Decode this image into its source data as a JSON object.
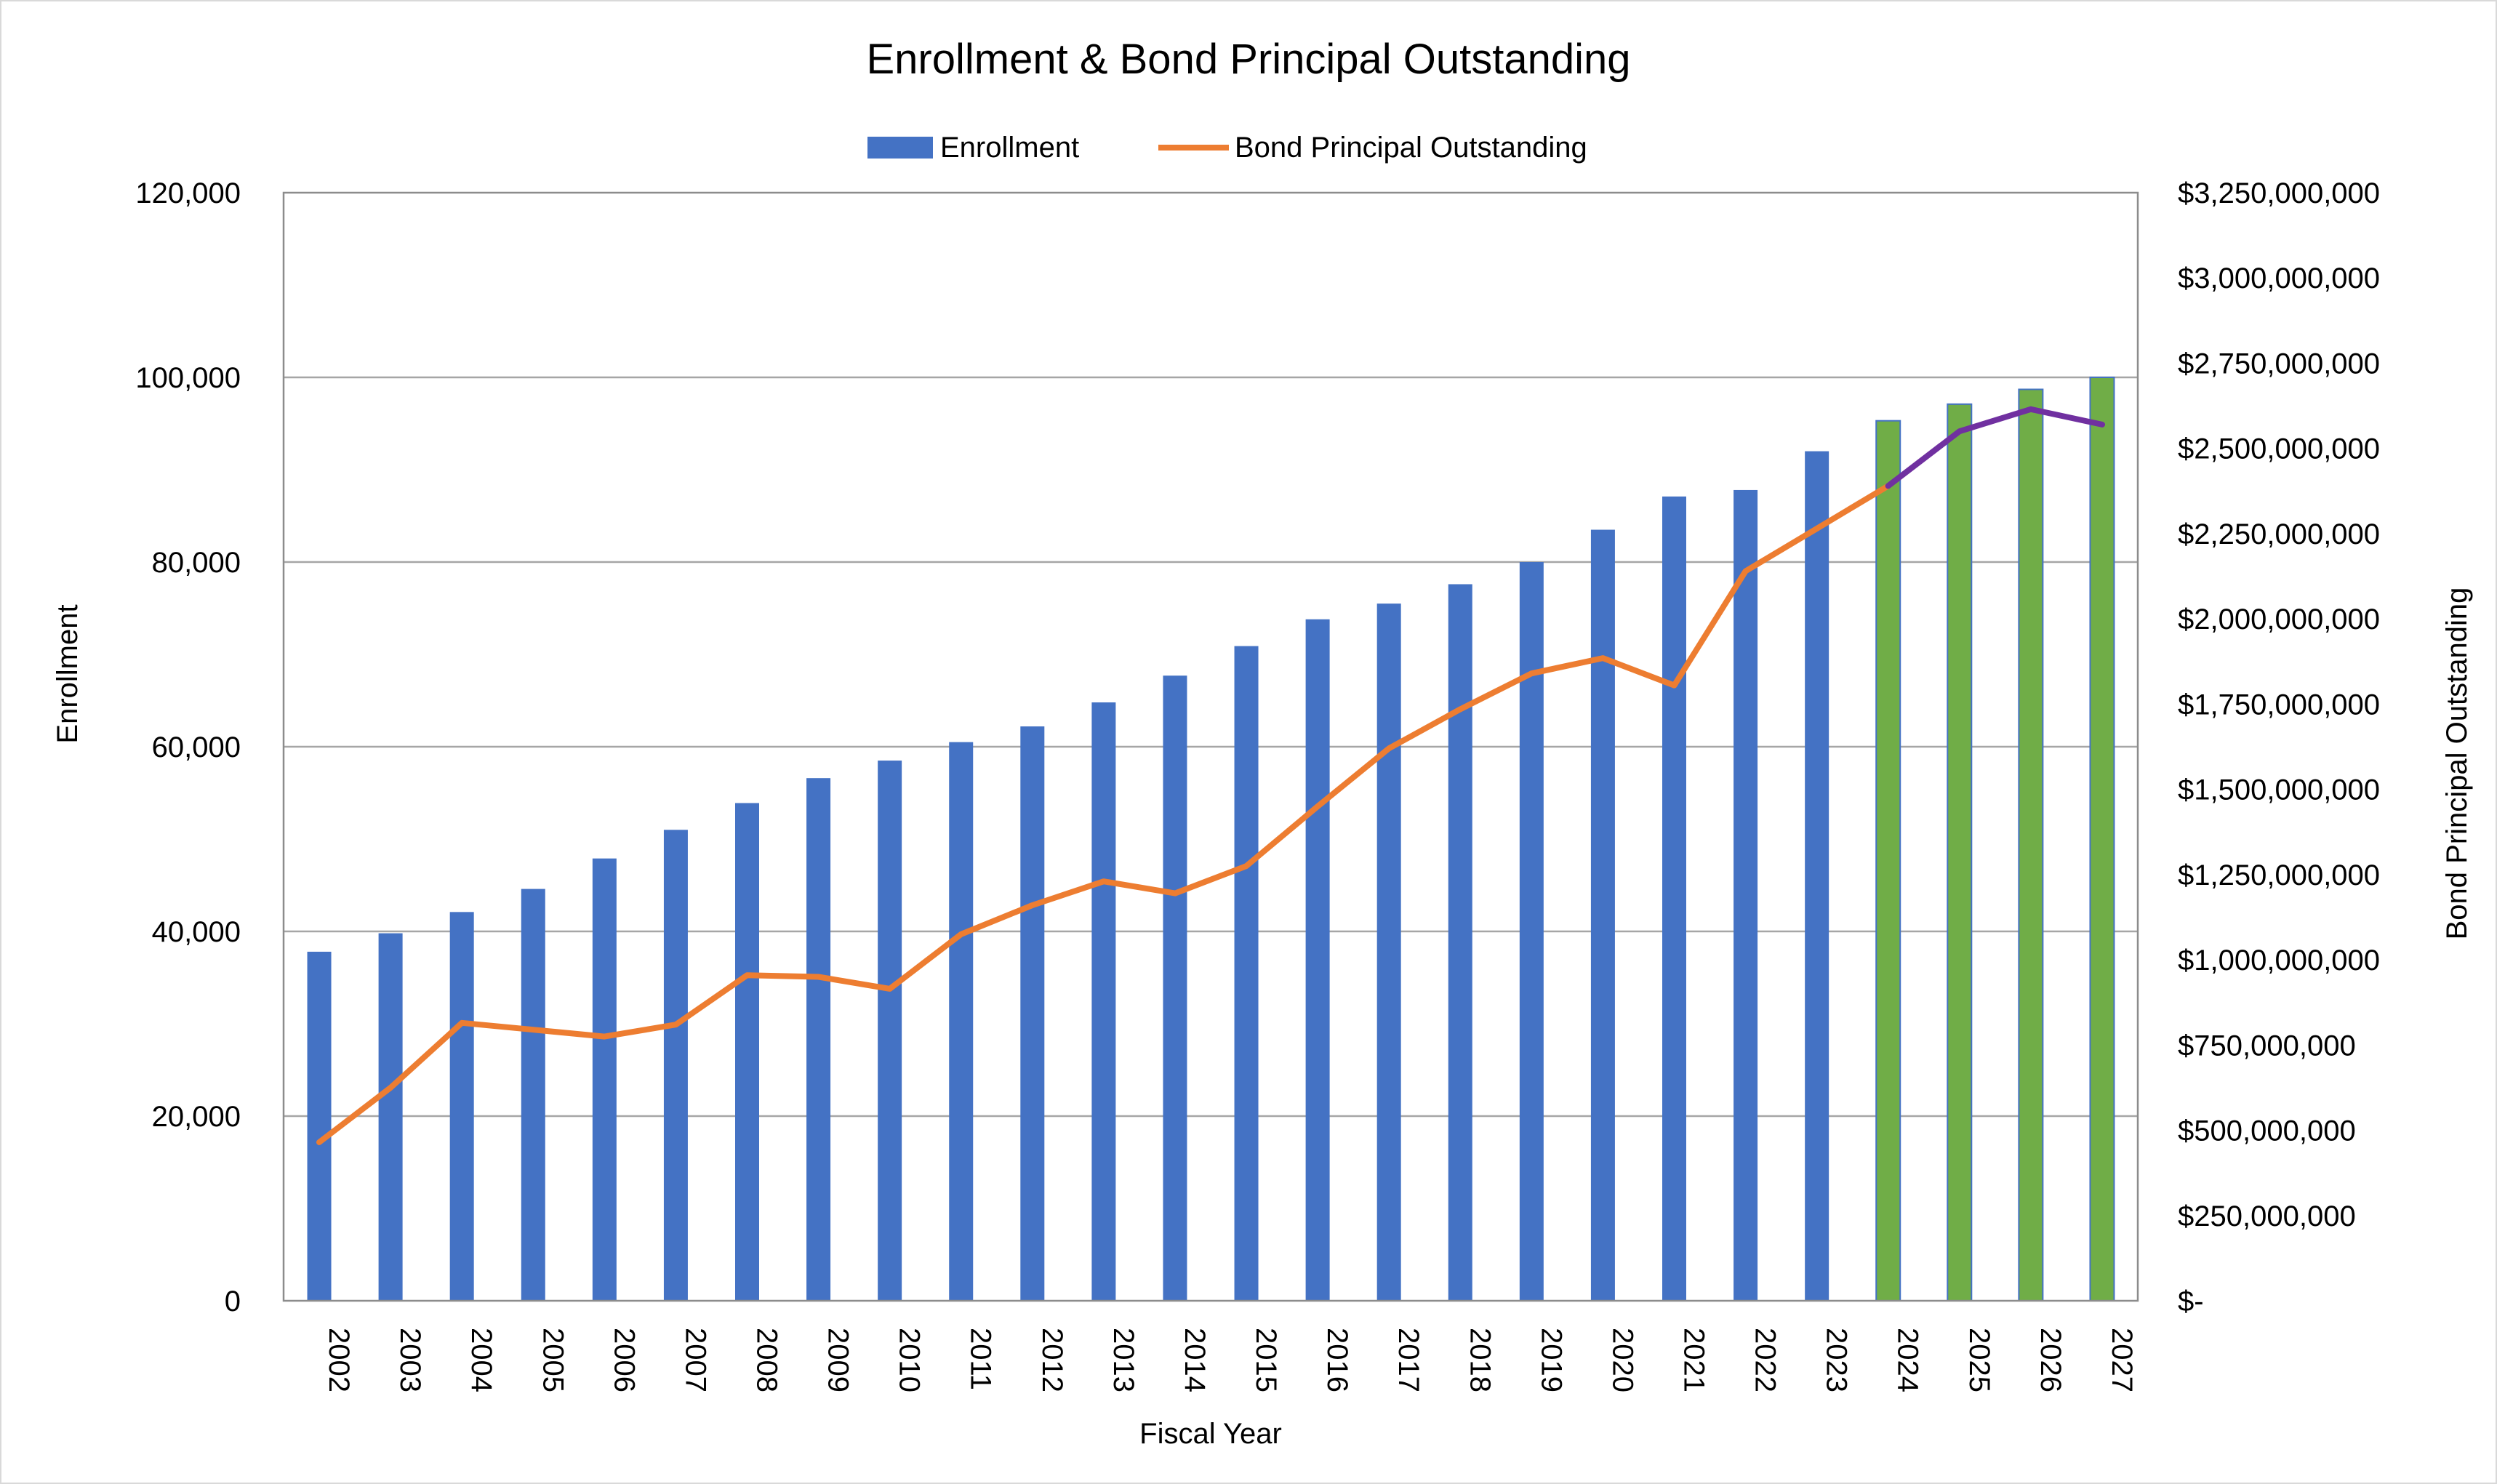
{
  "chart_data": {
    "type": "bar+line",
    "title": "Enrollment & Bond Principal Outstanding",
    "xlabel": "Fiscal Year",
    "ylabel_left": "Enrollment",
    "ylabel_right": "Bond Principal Outstanding",
    "legend": {
      "placement": "top-center",
      "entries": [
        "Enrollment",
        "Bond Principal Outstanding"
      ]
    },
    "grid": true,
    "ylim_left": [
      0,
      120000
    ],
    "ylim_right": [
      0,
      3250000000
    ],
    "left_ticks": [
      "0",
      "20,000",
      "40,000",
      "60,000",
      "80,000",
      "100,000",
      "120,000"
    ],
    "right_ticks": [
      "$-",
      "$250,000,000",
      "$500,000,000",
      "$750,000,000",
      "$1,000,000,000",
      "$1,250,000,000",
      "$1,500,000,000",
      "$1,750,000,000",
      "$2,000,000,000",
      "$2,250,000,000",
      "$2,500,000,000",
      "$2,750,000,000",
      "$3,000,000,000",
      "$3,250,000,000"
    ],
    "categories": [
      "2002",
      "2003",
      "2004",
      "2005",
      "2006",
      "2007",
      "2008",
      "2009",
      "2010",
      "2011",
      "2012",
      "2013",
      "2014",
      "2015",
      "2016",
      "2017",
      "2018",
      "2019",
      "2020",
      "2021",
      "2022",
      "2023",
      "2024",
      "2025",
      "2026",
      "2027"
    ],
    "series": [
      {
        "name": "Enrollment",
        "type": "bar",
        "axis": "left",
        "values": [
          37800,
          39800,
          42100,
          44600,
          47900,
          51000,
          53900,
          56600,
          58500,
          60500,
          62200,
          64800,
          67700,
          70900,
          73800,
          75500,
          77600,
          80000,
          83500,
          87100,
          87800,
          92000,
          95300,
          97100,
          98700,
          100000
        ],
        "projected_from_index": 22
      },
      {
        "name": "Bond Principal Outstanding",
        "type": "line",
        "axis": "right",
        "values": [
          465000000,
          625000000,
          815000000,
          795000000,
          775000000,
          810000000,
          955000000,
          950000000,
          915000000,
          1075000000,
          1160000000,
          1230000000,
          1195000000,
          1275000000,
          1450000000,
          1620000000,
          1735000000,
          1840000000,
          1885000000,
          1805000000,
          2140000000,
          2265000000,
          2390000000,
          2550000000,
          2615000000,
          2570000000
        ],
        "projected_from_index": 22
      }
    ],
    "colors": {
      "enrollment_bar": "#4472C4",
      "projected_bar": "#70AD47",
      "projected_bar_border": "#4472C4",
      "bond_line": "#ED7D31",
      "projected_line": "#7030A0",
      "gridline": "#a6a6a6",
      "plot_border": "#8c8c8c"
    }
  }
}
